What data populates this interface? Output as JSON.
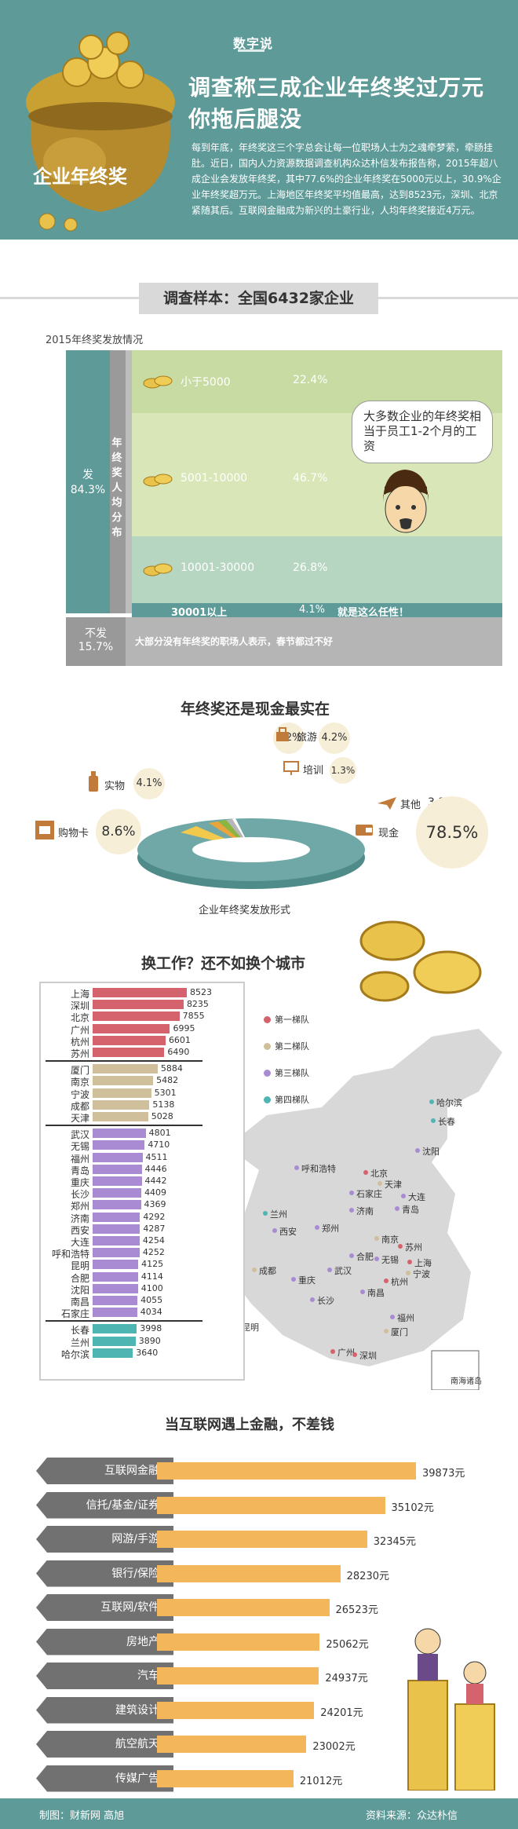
{
  "header": {
    "brand": "数字说",
    "pot_label": "企业年终奖",
    "title_line1": "调查称三成企业年终奖过万元",
    "title_line2": "你拖后腿没",
    "intro": "每到年底，年终奖这三个字总会让每一位职场人士为之魂牵梦萦，牵肠挂肚。近日，国内人力资源数据调查机构众达朴信发布报告称，2015年超八成企业会发放年终奖，其中77.6%的企业年终奖在5000元以上，30.9%企业年终奖超万元。上海地区年终奖平均值最高，达到8523元，深圳、北京紧随其后。互联网金融成为新兴的土豪行业，人均年终奖接近4万元。"
  },
  "sample": {
    "text": "调查样本：全国6432家企业"
  },
  "distribution": {
    "caption": "2015年终奖发放情况",
    "yes_label": "发",
    "yes_pct": "84.3%",
    "per_capita_label": "年终奖人均分布",
    "bands": [
      {
        "label": "小于5000",
        "pct": "22.4%"
      },
      {
        "label": "5001-10000",
        "pct": "46.7%"
      },
      {
        "label": "10001-30000",
        "pct": "26.8%"
      },
      {
        "label": "30001以上",
        "pct": "4.1%",
        "note": "就是这么任性！"
      }
    ],
    "no_label": "不发",
    "no_pct": "15.7%",
    "no_note": "大部分没有年终奖的职场人表示，春节都过不好",
    "bubble": "大多数企业的年终奖相当于员工1-2个月的工资"
  },
  "forms": {
    "title": "年终奖还是现金最实在",
    "caption": "企业年终奖发放形式",
    "items": [
      {
        "label": "旅游",
        "pct": "4.2%"
      },
      {
        "label": "培训",
        "pct": "1.3%"
      },
      {
        "label": "实物",
        "pct": "4.1%"
      },
      {
        "label": "其他",
        "pct": "3.3%"
      },
      {
        "label": "购物卡",
        "pct": "8.6%"
      },
      {
        "label": "现金",
        "pct": "78.5%"
      }
    ]
  },
  "cities": {
    "title": "换工作？还不如换个城市",
    "legend": [
      "第一梯队",
      "第二梯队",
      "第三梯队",
      "第四梯队"
    ],
    "tier_colors": [
      "#d4636d",
      "#cfbf9a",
      "#a98bd4",
      "#4fb5b3"
    ],
    "bars": [
      {
        "city": "上海",
        "value": 8523,
        "tier": 0
      },
      {
        "city": "深圳",
        "value": 8235,
        "tier": 0
      },
      {
        "city": "北京",
        "value": 7855,
        "tier": 0
      },
      {
        "city": "广州",
        "value": 6995,
        "tier": 0
      },
      {
        "city": "杭州",
        "value": 6601,
        "tier": 0
      },
      {
        "city": "苏州",
        "value": 6490,
        "tier": 0
      },
      {
        "city": "厦门",
        "value": 5884,
        "tier": 1
      },
      {
        "city": "南京",
        "value": 5482,
        "tier": 1
      },
      {
        "city": "宁波",
        "value": 5301,
        "tier": 1
      },
      {
        "city": "成都",
        "value": 5138,
        "tier": 1
      },
      {
        "city": "天津",
        "value": 5028,
        "tier": 1
      },
      {
        "city": "武汉",
        "value": 4801,
        "tier": 2
      },
      {
        "city": "无锡",
        "value": 4710,
        "tier": 2
      },
      {
        "city": "福州",
        "value": 4511,
        "tier": 2
      },
      {
        "city": "青岛",
        "value": 4446,
        "tier": 2
      },
      {
        "city": "重庆",
        "value": 4442,
        "tier": 2
      },
      {
        "city": "长沙",
        "value": 4409,
        "tier": 2
      },
      {
        "city": "郑州",
        "value": 4369,
        "tier": 2
      },
      {
        "city": "济南",
        "value": 4292,
        "tier": 2
      },
      {
        "city": "西安",
        "value": 4287,
        "tier": 2
      },
      {
        "city": "大连",
        "value": 4254,
        "tier": 2
      },
      {
        "city": "呼和浩特",
        "value": 4252,
        "tier": 2
      },
      {
        "city": "昆明",
        "value": 4125,
        "tier": 2
      },
      {
        "city": "合肥",
        "value": 4114,
        "tier": 2
      },
      {
        "city": "沈阳",
        "value": 4100,
        "tier": 2
      },
      {
        "city": "南昌",
        "value": 4055,
        "tier": 2
      },
      {
        "city": "石家庄",
        "value": 4034,
        "tier": 2
      },
      {
        "city": "长春",
        "value": 3998,
        "tier": 3
      },
      {
        "city": "兰州",
        "value": 3890,
        "tier": 3
      },
      {
        "city": "哈尔滨",
        "value": 3640,
        "tier": 3
      }
    ],
    "map_labels": [
      {
        "city": "哈尔滨",
        "tier": 3
      },
      {
        "city": "长春",
        "tier": 3
      },
      {
        "city": "沈阳",
        "tier": 2
      },
      {
        "city": "呼和浩特",
        "tier": 2
      },
      {
        "city": "北京",
        "tier": 0
      },
      {
        "city": "天津",
        "tier": 1
      },
      {
        "city": "大连",
        "tier": 2
      },
      {
        "city": "石家庄",
        "tier": 2
      },
      {
        "city": "兰州",
        "tier": 3
      },
      {
        "city": "济南",
        "tier": 2
      },
      {
        "city": "青岛",
        "tier": 2
      },
      {
        "city": "西安",
        "tier": 2
      },
      {
        "city": "郑州",
        "tier": 2
      },
      {
        "city": "南京",
        "tier": 1
      },
      {
        "city": "苏州",
        "tier": 0
      },
      {
        "city": "合肥",
        "tier": 2
      },
      {
        "city": "无锡",
        "tier": 2
      },
      {
        "city": "上海",
        "tier": 0
      },
      {
        "city": "成都",
        "tier": 1
      },
      {
        "city": "武汉",
        "tier": 2
      },
      {
        "city": "宁波",
        "tier": 1
      },
      {
        "city": "重庆",
        "tier": 2
      },
      {
        "city": "杭州",
        "tier": 0
      },
      {
        "city": "南昌",
        "tier": 2
      },
      {
        "city": "长沙",
        "tier": 2
      },
      {
        "city": "福州",
        "tier": 2
      },
      {
        "city": "昆明",
        "tier": 2
      },
      {
        "city": "厦门",
        "tier": 1
      },
      {
        "city": "广州",
        "tier": 0
      },
      {
        "city": "深圳",
        "tier": 0
      }
    ],
    "inset": "南海诸岛"
  },
  "industries": {
    "title": "当互联网遇上金融，不差钱",
    "items": [
      {
        "name": "互联网金融",
        "value": 39873,
        "label": "39873元"
      },
      {
        "name": "信托/基金/证券",
        "value": 35102,
        "label": "35102元"
      },
      {
        "name": "网游/手游",
        "value": 32345,
        "label": "32345元"
      },
      {
        "name": "银行/保险",
        "value": 28230,
        "label": "28230元"
      },
      {
        "name": "互联网/软件",
        "value": 26523,
        "label": "26523元"
      },
      {
        "name": "房地产",
        "value": 25062,
        "label": "25062元"
      },
      {
        "name": "汽车",
        "value": 24937,
        "label": "24937元"
      },
      {
        "name": "建筑设计",
        "value": 24201,
        "label": "24201元"
      },
      {
        "name": "航空航天",
        "value": 23002,
        "label": "23002元"
      },
      {
        "name": "传媒广告",
        "value": 21012,
        "label": "21012元"
      }
    ]
  },
  "footer": {
    "credit": "制图：财新网 高旭",
    "source": "资料来源：众达朴信"
  },
  "chart_data": [
    {
      "type": "bar",
      "title": "2015年终奖发放情况",
      "categories": [
        "小于5000",
        "5001-10000",
        "10001-30000",
        "30001以上",
        "不发"
      ],
      "values": [
        22.4,
        46.7,
        26.8,
        4.1,
        15.7
      ]
    },
    {
      "type": "pie",
      "title": "年终奖还是现金最实在",
      "categories": [
        "现金",
        "购物卡",
        "旅游",
        "实物",
        "其他",
        "培训"
      ],
      "values": [
        78.5,
        8.6,
        4.2,
        4.1,
        3.3,
        1.3
      ]
    },
    {
      "type": "bar",
      "title": "换工作？还不如换个城市",
      "categories": [
        "上海",
        "深圳",
        "北京",
        "广州",
        "杭州",
        "苏州",
        "厦门",
        "南京",
        "宁波",
        "成都",
        "天津",
        "武汉",
        "无锡",
        "福州",
        "青岛",
        "重庆",
        "长沙",
        "郑州",
        "济南",
        "西安",
        "大连",
        "呼和浩特",
        "昆明",
        "合肥",
        "沈阳",
        "南昌",
        "石家庄",
        "长春",
        "兰州",
        "哈尔滨"
      ],
      "values": [
        8523,
        8235,
        7855,
        6995,
        6601,
        6490,
        5884,
        5482,
        5301,
        5138,
        5028,
        4801,
        4710,
        4511,
        4446,
        4442,
        4409,
        4369,
        4292,
        4287,
        4254,
        4252,
        4125,
        4114,
        4100,
        4055,
        4034,
        3998,
        3890,
        3640
      ]
    },
    {
      "type": "bar",
      "title": "当互联网遇上金融，不差钱",
      "categories": [
        "互联网金融",
        "信托/基金/证券",
        "网游/手游",
        "银行/保险",
        "互联网/软件",
        "房地产",
        "汽车",
        "建筑设计",
        "航空航天",
        "传媒广告"
      ],
      "values": [
        39873,
        35102,
        32345,
        28230,
        26523,
        25062,
        24937,
        24201,
        23002,
        21012
      ]
    }
  ]
}
